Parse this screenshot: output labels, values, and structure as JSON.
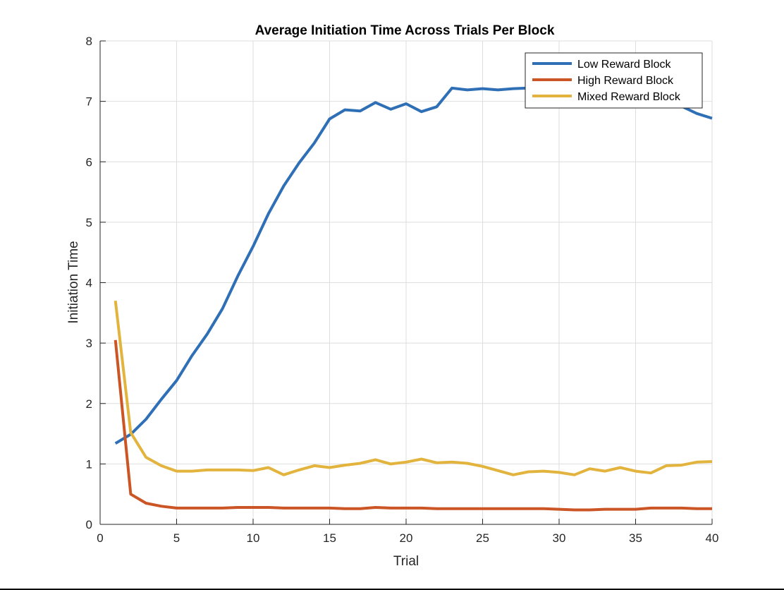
{
  "chart_data": {
    "type": "line",
    "title": "Average Initiation Time Across Trials Per Block",
    "xlabel": "Trial",
    "ylabel": "Initiation Time",
    "xlim": [
      0,
      40
    ],
    "ylim": [
      0,
      8
    ],
    "xticks": [
      0,
      5,
      10,
      15,
      20,
      25,
      30,
      35,
      40
    ],
    "yticks": [
      0,
      1,
      2,
      3,
      4,
      5,
      6,
      7,
      8
    ],
    "grid": true,
    "legend_position": "top-right",
    "x": [
      1,
      2,
      3,
      4,
      5,
      6,
      7,
      8,
      9,
      10,
      11,
      12,
      13,
      14,
      15,
      16,
      17,
      18,
      19,
      20,
      21,
      22,
      23,
      24,
      25,
      26,
      27,
      28,
      29,
      30,
      31,
      32,
      33,
      34,
      35,
      36,
      37,
      38,
      39,
      40
    ],
    "series": [
      {
        "name": "Low Reward Block",
        "color": "#2e6fb6",
        "values": [
          1.34,
          1.49,
          1.74,
          2.07,
          2.38,
          2.79,
          3.15,
          3.57,
          4.11,
          4.6,
          5.14,
          5.6,
          5.98,
          6.31,
          6.71,
          6.86,
          6.84,
          6.98,
          6.87,
          6.96,
          6.83,
          6.91,
          7.22,
          7.19,
          7.21,
          7.19,
          7.21,
          7.22,
          7.26,
          7.24,
          7.25,
          7.23,
          7.24,
          7.23,
          7.22,
          7.18,
          7.05,
          6.92,
          6.8,
          6.72
        ]
      },
      {
        "name": "High Reward Block",
        "color": "#cc5526",
        "values": [
          3.05,
          0.5,
          0.35,
          0.3,
          0.27,
          0.27,
          0.27,
          0.27,
          0.28,
          0.28,
          0.28,
          0.27,
          0.27,
          0.27,
          0.27,
          0.26,
          0.26,
          0.28,
          0.27,
          0.27,
          0.27,
          0.26,
          0.26,
          0.26,
          0.26,
          0.26,
          0.26,
          0.26,
          0.26,
          0.25,
          0.24,
          0.24,
          0.25,
          0.25,
          0.25,
          0.27,
          0.27,
          0.27,
          0.26,
          0.26
        ]
      },
      {
        "name": "Mixed Reward Block",
        "color": "#e3b43d",
        "values": [
          3.7,
          1.52,
          1.11,
          0.97,
          0.88,
          0.88,
          0.9,
          0.9,
          0.9,
          0.89,
          0.94,
          0.82,
          0.9,
          0.97,
          0.94,
          0.98,
          1.01,
          1.07,
          1.0,
          1.03,
          1.08,
          1.02,
          1.03,
          1.01,
          0.96,
          0.89,
          0.82,
          0.87,
          0.88,
          0.86,
          0.82,
          0.92,
          0.88,
          0.94,
          0.88,
          0.85,
          0.97,
          0.98,
          1.03,
          1.04
        ]
      }
    ]
  }
}
